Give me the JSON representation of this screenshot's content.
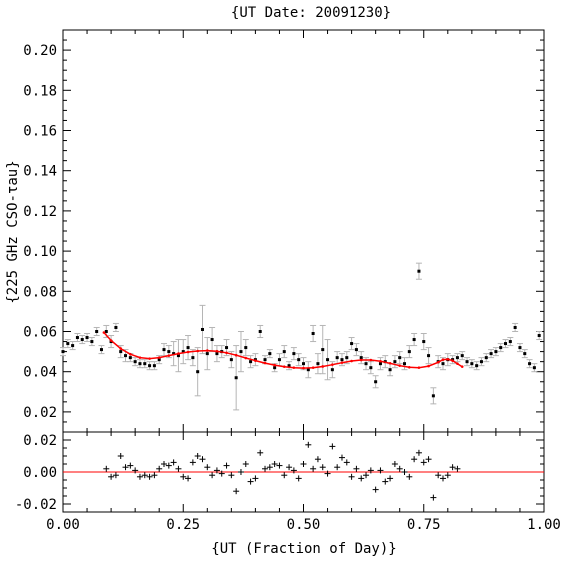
{
  "chart_data": {
    "type": "scatter",
    "title": "{UT Date: 20091230}",
    "xlabel": "{UT (Fraction of Day)}",
    "ylabel": "{225 GHz CSO-τau}",
    "xlim": [
      0.0,
      1.0
    ],
    "top_panel": {
      "ylim": [
        0.01,
        0.21
      ],
      "yticks": [
        "0.02",
        "0.04",
        "0.06",
        "0.08",
        "0.10",
        "0.12",
        "0.14",
        "0.16",
        "0.18",
        "0.20"
      ],
      "series": [
        {
          "x": [
            0.0,
            0.01,
            0.02,
            0.03,
            0.04,
            0.05,
            0.06,
            0.07,
            0.08,
            0.09,
            0.1,
            0.11,
            0.12,
            0.13,
            0.14,
            0.15,
            0.16,
            0.17,
            0.18,
            0.19,
            0.2,
            0.21,
            0.22,
            0.23,
            0.24,
            0.25,
            0.26,
            0.27,
            0.28,
            0.29,
            0.3,
            0.31,
            0.32,
            0.33,
            0.34,
            0.35,
            0.36,
            0.37,
            0.38,
            0.39,
            0.4,
            0.41,
            0.42,
            0.43,
            0.44,
            0.45,
            0.46,
            0.47,
            0.48,
            0.49,
            0.5,
            0.51,
            0.52,
            0.53,
            0.54,
            0.55,
            0.56,
            0.57,
            0.58,
            0.59,
            0.6,
            0.61,
            0.62,
            0.63,
            0.64,
            0.65,
            0.66,
            0.67,
            0.68,
            0.69,
            0.7,
            0.71,
            0.72,
            0.73,
            0.74,
            0.75,
            0.76,
            0.77,
            0.78,
            0.79,
            0.8,
            0.81,
            0.82,
            0.83,
            0.84,
            0.85,
            0.86,
            0.87,
            0.88,
            0.89,
            0.9,
            0.91,
            0.92,
            0.93,
            0.94,
            0.95,
            0.96,
            0.97,
            0.98,
            0.99
          ],
          "y": [
            0.05,
            0.054,
            0.053,
            0.057,
            0.056,
            0.057,
            0.055,
            0.06,
            0.051,
            0.06,
            0.055,
            0.062,
            0.05,
            0.048,
            0.047,
            0.045,
            0.044,
            0.044,
            0.043,
            0.043,
            0.046,
            0.051,
            0.05,
            0.049,
            0.048,
            0.05,
            0.052,
            0.047,
            0.04,
            0.061,
            0.049,
            0.056,
            0.049,
            0.05,
            0.052,
            0.046,
            0.037,
            0.05,
            0.052,
            0.045,
            0.046,
            0.06,
            0.046,
            0.049,
            0.042,
            0.046,
            0.05,
            0.043,
            0.049,
            0.046,
            0.044,
            0.041,
            0.059,
            0.044,
            0.051,
            0.046,
            0.041,
            0.047,
            0.046,
            0.047,
            0.054,
            0.051,
            0.047,
            0.044,
            0.042,
            0.035,
            0.044,
            0.045,
            0.041,
            0.045,
            0.047,
            0.044,
            0.05,
            0.056,
            0.09,
            0.055,
            0.048,
            0.028,
            0.045,
            0.044,
            0.046,
            0.046,
            0.047,
            0.048,
            0.045,
            0.044,
            0.043,
            0.045,
            0.047,
            0.049,
            0.05,
            0.052,
            0.054,
            0.055,
            0.062,
            0.052,
            0.049,
            0.044,
            0.042,
            0.058
          ],
          "yerr": [
            0.002,
            0.002,
            0.002,
            0.002,
            0.002,
            0.002,
            0.002,
            0.002,
            0.002,
            0.003,
            0.003,
            0.002,
            0.003,
            0.003,
            0.002,
            0.002,
            0.002,
            0.002,
            0.002,
            0.002,
            0.002,
            0.003,
            0.003,
            0.006,
            0.008,
            0.006,
            0.006,
            0.004,
            0.012,
            0.012,
            0.008,
            0.006,
            0.004,
            0.003,
            0.004,
            0.004,
            0.016,
            0.01,
            0.004,
            0.003,
            0.003,
            0.003,
            0.002,
            0.002,
            0.002,
            0.003,
            0.003,
            0.002,
            0.003,
            0.003,
            0.003,
            0.004,
            0.004,
            0.005,
            0.012,
            0.01,
            0.004,
            0.003,
            0.003,
            0.003,
            0.003,
            0.003,
            0.003,
            0.003,
            0.003,
            0.003,
            0.003,
            0.003,
            0.003,
            0.003,
            0.003,
            0.003,
            0.003,
            0.003,
            0.004,
            0.004,
            0.004,
            0.004,
            0.003,
            0.003,
            0.003,
            0.002,
            0.002,
            0.002,
            0.002,
            0.002,
            0.002,
            0.002,
            0.002,
            0.002,
            0.002,
            0.002,
            0.002,
            0.002,
            0.002,
            0.002,
            0.002,
            0.002,
            0.002,
            0.002
          ]
        }
      ],
      "fit": {
        "x": [
          0.085,
          0.1,
          0.12,
          0.14,
          0.16,
          0.18,
          0.2,
          0.22,
          0.24,
          0.26,
          0.28,
          0.3,
          0.32,
          0.34,
          0.36,
          0.38,
          0.4,
          0.42,
          0.44,
          0.46,
          0.48,
          0.5,
          0.52,
          0.54,
          0.56,
          0.58,
          0.6,
          0.62,
          0.64,
          0.66,
          0.68,
          0.7,
          0.72,
          0.74,
          0.76,
          0.78,
          0.79,
          0.8,
          0.81,
          0.82,
          0.83
        ],
        "y": [
          0.0595,
          0.0555,
          0.0515,
          0.0487,
          0.047,
          0.0465,
          0.047,
          0.048,
          0.049,
          0.0498,
          0.0503,
          0.0505,
          0.0502,
          0.0494,
          0.0482,
          0.0468,
          0.0455,
          0.0443,
          0.0433,
          0.0425,
          0.042,
          0.0418,
          0.042,
          0.0426,
          0.0435,
          0.0445,
          0.0453,
          0.0458,
          0.0458,
          0.0452,
          0.0442,
          0.043,
          0.0422,
          0.042,
          0.0428,
          0.0447,
          0.046,
          0.0462,
          0.0455,
          0.044,
          0.0425
        ],
        "color": "#ff0000"
      }
    },
    "bottom_panel": {
      "ylim": [
        -0.025,
        0.025
      ],
      "yticks": [
        "-0.02",
        "0.00",
        "0.02"
      ],
      "zero_line_color": "#ff0000",
      "residuals": {
        "x": [
          0.09,
          0.1,
          0.11,
          0.12,
          0.13,
          0.14,
          0.15,
          0.16,
          0.17,
          0.18,
          0.19,
          0.2,
          0.21,
          0.22,
          0.23,
          0.24,
          0.25,
          0.26,
          0.27,
          0.28,
          0.29,
          0.3,
          0.31,
          0.32,
          0.33,
          0.34,
          0.35,
          0.36,
          0.37,
          0.38,
          0.39,
          0.4,
          0.41,
          0.42,
          0.43,
          0.44,
          0.45,
          0.46,
          0.47,
          0.48,
          0.49,
          0.5,
          0.51,
          0.52,
          0.53,
          0.54,
          0.55,
          0.56,
          0.57,
          0.58,
          0.59,
          0.6,
          0.61,
          0.62,
          0.63,
          0.64,
          0.65,
          0.66,
          0.67,
          0.68,
          0.69,
          0.7,
          0.71,
          0.72,
          0.73,
          0.74,
          0.75,
          0.76,
          0.77,
          0.78,
          0.79,
          0.8,
          0.81,
          0.82
        ],
        "y": [
          0.002,
          -0.003,
          -0.002,
          0.01,
          0.003,
          0.004,
          0.001,
          -0.003,
          -0.002,
          -0.003,
          -0.002,
          0.002,
          0.005,
          0.004,
          0.006,
          0.002,
          -0.003,
          -0.004,
          0.006,
          0.01,
          0.008,
          0.003,
          -0.002,
          0.001,
          -0.001,
          0.004,
          -0.002,
          -0.012,
          0.0,
          0.005,
          -0.006,
          -0.004,
          0.012,
          0.002,
          0.003,
          0.005,
          0.004,
          -0.002,
          0.003,
          0.001,
          -0.004,
          0.005,
          0.017,
          0.002,
          0.008,
          0.003,
          -0.001,
          0.016,
          0.003,
          0.009,
          0.006,
          -0.003,
          0.002,
          -0.004,
          -0.002,
          0.001,
          -0.011,
          0.001,
          -0.006,
          -0.004,
          0.005,
          0.002,
          0.0,
          -0.003,
          0.008,
          0.012,
          0.006,
          0.008,
          -0.016,
          -0.002,
          -0.004,
          -0.002,
          0.003,
          0.002
        ]
      }
    }
  }
}
